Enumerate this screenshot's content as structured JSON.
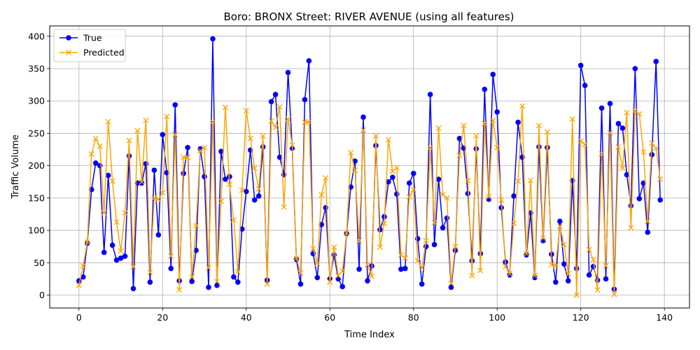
{
  "chart_data": {
    "type": "line",
    "title": "Boro: BRONX Street: RIVER AVENUE (using all features)",
    "xlabel": "Time Index",
    "ylabel": "Traffic Volume",
    "xlim": [
      -7,
      146
    ],
    "ylim": [
      -20,
      416
    ],
    "xticks": [
      0,
      20,
      40,
      60,
      80,
      100,
      120,
      140
    ],
    "yticks": [
      0,
      50,
      100,
      150,
      200,
      250,
      300,
      350,
      400
    ],
    "grid": true,
    "legend": "upper-left",
    "series": [
      {
        "name": "True",
        "color": "#0000ff",
        "marker": "circle",
        "values": [
          22,
          28,
          80,
          163,
          204,
          200,
          66,
          185,
          77,
          54,
          57,
          60,
          215,
          10,
          173,
          173,
          203,
          20,
          193,
          93,
          248,
          189,
          41,
          294,
          22,
          188,
          228,
          21,
          69,
          226,
          183,
          12,
          396,
          15,
          222,
          179,
          183,
          28,
          20,
          102,
          160,
          224,
          147,
          153,
          229,
          23,
          299,
          310,
          213,
          186,
          344,
          227,
          55,
          17,
          302,
          362,
          64,
          27,
          109,
          135,
          25,
          62,
          25,
          13,
          95,
          167,
          207,
          40,
          275,
          22,
          45,
          231,
          101,
          121,
          175,
          182,
          156,
          40,
          41,
          173,
          188,
          87,
          17,
          75,
          310,
          78,
          179,
          104,
          119,
          12,
          69,
          242,
          227,
          157,
          53,
          226,
          64,
          318,
          148,
          341,
          283,
          135,
          51,
          31,
          153,
          267,
          213,
          62,
          127,
          27,
          229,
          84,
          228,
          63,
          20,
          114,
          48,
          22,
          177,
          41,
          355,
          324,
          31,
          44,
          23,
          289,
          25,
          296,
          9,
          265,
          258,
          186,
          138,
          350,
          149,
          173,
          97,
          217,
          361,
          147
        ]
      },
      {
        "name": "Predicted",
        "color": "#ffa500",
        "marker": "x",
        "values": [
          15,
          45,
          82,
          218,
          242,
          230,
          127,
          268,
          176,
          113,
          68,
          127,
          239,
          44,
          254,
          175,
          270,
          35,
          150,
          148,
          158,
          276,
          60,
          248,
          8,
          213,
          213,
          28,
          107,
          223,
          228,
          42,
          268,
          21,
          145,
          290,
          171,
          116,
          36,
          162,
          285,
          242,
          196,
          164,
          246,
          17,
          269,
          259,
          291,
          136,
          272,
          232,
          57,
          34,
          267,
          268,
          72,
          49,
          155,
          181,
          20,
          74,
          30,
          37,
          96,
          220,
          193,
          84,
          255,
          47,
          29,
          246,
          74,
          111,
          240,
          191,
          197,
          62,
          57,
          152,
          163,
          53,
          42,
          84,
          228,
          112,
          258,
          155,
          150,
          18,
          75,
          216,
          262,
          177,
          30,
          246,
          38,
          265,
          152,
          270,
          228,
          147,
          44,
          33,
          111,
          176,
          292,
          64,
          177,
          30,
          262,
          88,
          252,
          47,
          45,
          106,
          78,
          33,
          272,
          0,
          238,
          233,
          70,
          55,
          8,
          218,
          45,
          251,
          1,
          229,
          196,
          282,
          104,
          285,
          280,
          221,
          114,
          235,
          227,
          179
        ]
      }
    ]
  }
}
